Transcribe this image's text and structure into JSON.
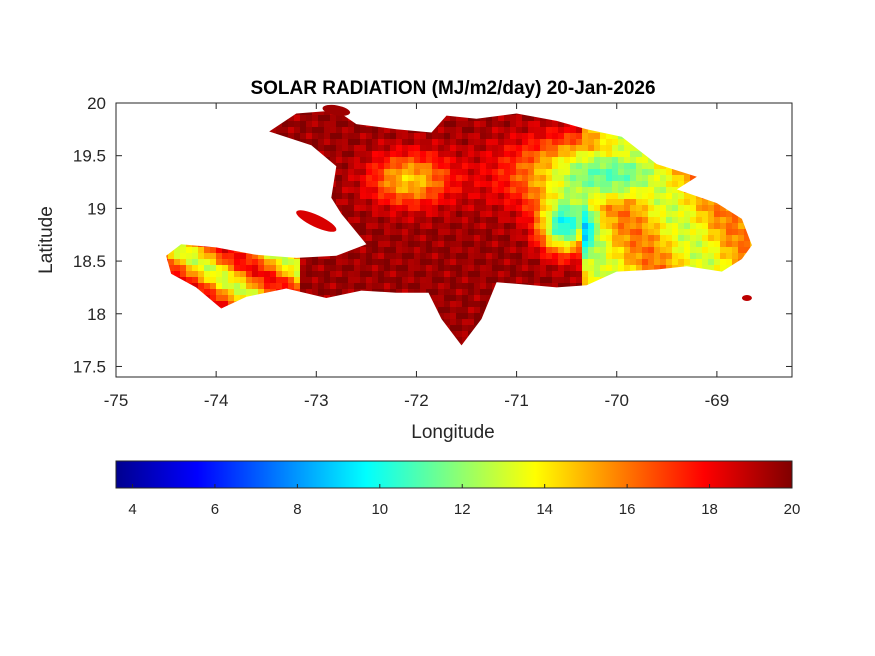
{
  "chart_data": {
    "type": "heatmap",
    "title": "SOLAR RADIATION (MJ/m2/day) 20-Jan-2026",
    "xlabel": "Longitude",
    "ylabel": "Latitude",
    "xlim": [
      -75,
      -68.25
    ],
    "ylim": [
      17.4,
      20
    ],
    "xticks": [
      -75,
      -74,
      -73,
      -72,
      -71,
      -70,
      -69
    ],
    "xtick_labels": [
      "-75",
      "-74",
      "-73",
      "-72",
      "-71",
      "-70",
      "-69"
    ],
    "yticks": [
      20,
      19.5,
      19,
      18.5,
      18,
      17.5
    ],
    "ytick_labels": [
      "20",
      "19.5",
      "19",
      "18.5",
      "18",
      "17.5"
    ],
    "colormap": "jet",
    "colorbar": {
      "location": "bottom",
      "range": [
        3.6,
        20
      ],
      "ticks": [
        4,
        6,
        8,
        10,
        12,
        14,
        16,
        18,
        20
      ],
      "tick_labels": [
        "4",
        "6",
        "8",
        "10",
        "12",
        "14",
        "16",
        "18",
        "20"
      ]
    },
    "regions": [
      {
        "name_hint": "west",
        "value_range": [
          16,
          20
        ],
        "typical": 19.5
      },
      {
        "name_hint": "central",
        "value_range": [
          18,
          20
        ],
        "typical": 19.8
      },
      {
        "name_hint": "north-east",
        "value_range": [
          7,
          14
        ],
        "typical": 11
      },
      {
        "name_hint": "east",
        "value_range": [
          13,
          17
        ],
        "typical": 15
      },
      {
        "name_hint": "south-west peninsula",
        "value_range": [
          11,
          20
        ],
        "typical": 16
      }
    ]
  }
}
